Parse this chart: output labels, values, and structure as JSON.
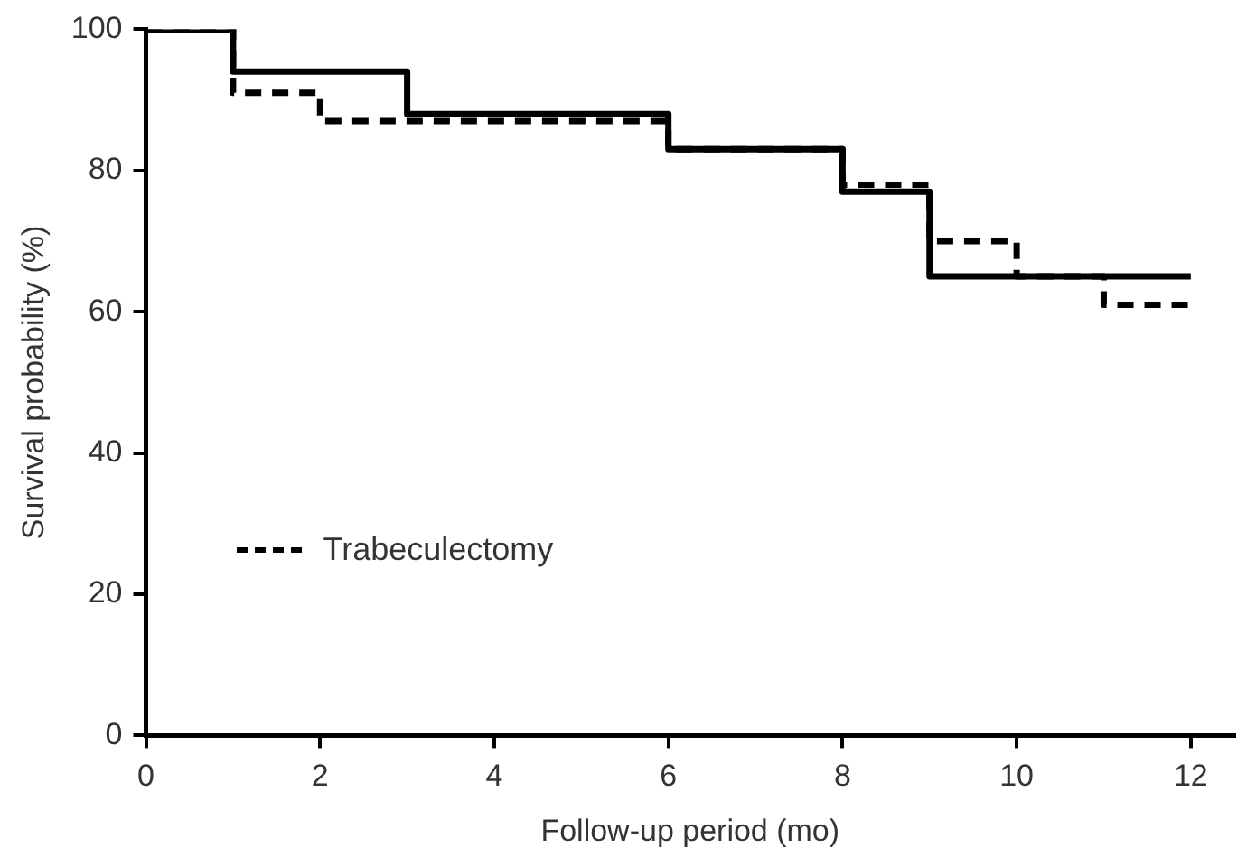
{
  "chart_data": {
    "type": "step",
    "xlabel": "Follow-up period (mo)",
    "ylabel": "Survival probability (%)",
    "xlim": [
      0,
      12.5
    ],
    "xticks": [
      0,
      2,
      4,
      6,
      8,
      10,
      12
    ],
    "ylim": [
      0,
      100
    ],
    "yticks": [
      0,
      20,
      40,
      60,
      80,
      100
    ],
    "grid": false,
    "legend": "bottom left",
    "marker": "none",
    "series": [
      {
        "color": "#000000",
        "line_style": "solid",
        "x": [
          0,
          1,
          3,
          6,
          8,
          9,
          12
        ],
        "values": [
          100,
          94,
          88,
          83,
          77,
          65,
          65
        ]
      },
      {
        "name": "Trabeculectomy",
        "color": "#000000",
        "line_style": "dashed",
        "x": [
          0,
          1,
          2,
          6,
          8,
          9,
          10,
          11,
          12
        ],
        "values": [
          100,
          91,
          87,
          83,
          78,
          70,
          65,
          61,
          61
        ]
      }
    ]
  }
}
